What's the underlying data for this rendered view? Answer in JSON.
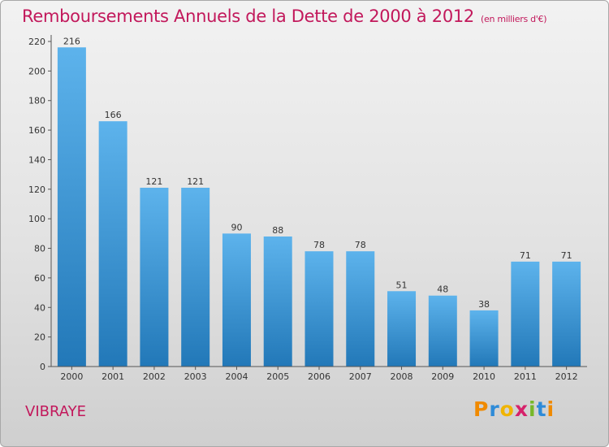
{
  "header": {
    "title": "Remboursements Annuels de la Dette de 2000 à 2012",
    "unit": "(en milliers d'€)"
  },
  "commune": "VIBRAYE",
  "logo": {
    "letters": [
      "P",
      "r",
      "o",
      "x",
      "i",
      "t",
      "i"
    ]
  },
  "colors": {
    "title": "#c2185b",
    "bar_top": "#5db3ec",
    "bar_bottom": "#2278b8"
  },
  "chart_data": {
    "type": "bar",
    "title": "Remboursements Annuels de la Dette de 2000 à 2012",
    "subtitle": "(en milliers d'€)",
    "xlabel": "",
    "ylabel": "",
    "categories": [
      "2000",
      "2001",
      "2002",
      "2003",
      "2004",
      "2005",
      "2006",
      "2007",
      "2008",
      "2009",
      "2010",
      "2011",
      "2012"
    ],
    "values": [
      216,
      166,
      121,
      121,
      90,
      88,
      78,
      78,
      51,
      48,
      38,
      71,
      71
    ],
    "ylim": [
      0,
      220
    ],
    "yticks": [
      0,
      20,
      40,
      60,
      80,
      100,
      120,
      140,
      160,
      180,
      200,
      220
    ],
    "grid": false,
    "legend": "none"
  }
}
